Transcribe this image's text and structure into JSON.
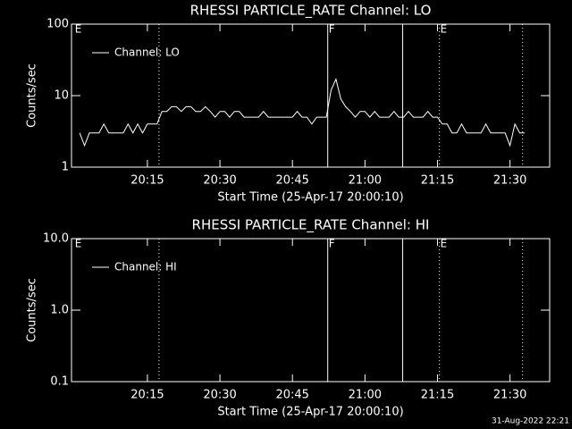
{
  "chart_data": [
    {
      "type": "line",
      "title": "RHESSI PARTICLE_RATE Channel: LO",
      "ylabel": "Counts/sec",
      "xlabel": "Start Time (25-Apr-17 20:00:10)",
      "ylog": true,
      "ylim": [
        1,
        100
      ],
      "yticks": [
        1,
        10,
        100
      ],
      "xlim": [
        -0.7,
        98.2
      ],
      "xticks": [
        {
          "value": 15,
          "label": "20:15"
        },
        {
          "value": 30,
          "label": "20:30"
        },
        {
          "value": 45,
          "label": "20:45"
        },
        {
          "value": 60,
          "label": "21:00"
        },
        {
          "value": 75,
          "label": "21:15"
        },
        {
          "value": 90,
          "label": "21:30"
        }
      ],
      "legend": "top-left",
      "x": [
        1,
        2,
        3,
        4,
        5,
        6,
        7,
        8,
        9,
        10,
        11,
        12,
        13,
        14,
        15,
        16,
        17,
        18,
        19,
        20,
        21,
        22,
        23,
        24,
        25,
        26,
        27,
        28,
        29,
        30,
        31,
        32,
        33,
        34,
        35,
        36,
        37,
        38,
        39,
        40,
        41,
        42,
        43,
        44,
        45,
        46,
        47,
        48,
        49,
        50,
        51,
        52,
        53,
        54,
        55,
        56,
        57,
        58,
        59,
        60,
        61,
        62,
        63,
        64,
        65,
        66,
        67,
        68,
        69,
        70,
        71,
        72,
        73,
        74,
        75,
        76,
        77,
        78,
        79,
        80,
        81,
        82,
        83,
        84,
        85,
        86,
        87,
        88,
        89,
        90,
        91,
        92,
        93
      ],
      "series": [
        {
          "name": "Channel: LO",
          "color": "#ffffff",
          "values": [
            3,
            2,
            3,
            3,
            3,
            4,
            3,
            3,
            3,
            3,
            4,
            3,
            4,
            3,
            4,
            4,
            4,
            6,
            6,
            7,
            7,
            6,
            7,
            7,
            6,
            6,
            7,
            6,
            5,
            6,
            6,
            5,
            6,
            6,
            5,
            5,
            5,
            5,
            6,
            5,
            5,
            5,
            5,
            5,
            5,
            6,
            5,
            5,
            4,
            5,
            5,
            5,
            12,
            17,
            9,
            7,
            6,
            5,
            6,
            6,
            5,
            6,
            5,
            5,
            5,
            6,
            5,
            5,
            6,
            5,
            5,
            5,
            6,
            5,
            5,
            4,
            4,
            3,
            3,
            4,
            3,
            3,
            3,
            3,
            4,
            3,
            3,
            3,
            3,
            2,
            4,
            3,
            3
          ]
        }
      ],
      "vlines": [
        {
          "x": 17.4,
          "style": "dotted"
        },
        {
          "x": 52.3,
          "style": "solid"
        },
        {
          "x": 67.8,
          "style": "solid"
        },
        {
          "x": 75.4,
          "style": "dotted"
        },
        {
          "x": 92.6,
          "style": "dotted"
        }
      ],
      "annotations": [
        {
          "x": -0.2,
          "text": "E"
        },
        {
          "x": 52.3,
          "text": "F"
        },
        {
          "x": 75.4,
          "text": "E"
        }
      ]
    },
    {
      "type": "line",
      "title": "RHESSI PARTICLE_RATE Channel: HI",
      "ylabel": "Counts/sec",
      "xlabel": "Start Time (25-Apr-17 20:00:10)",
      "ylog": true,
      "ylim": [
        0.1,
        10
      ],
      "yticks": [
        0.1,
        {
          "value": 1,
          "label": "1.0"
        },
        {
          "value": 10,
          "label": "10.0"
        }
      ],
      "xlim": [
        -0.7,
        98.2
      ],
      "xticks": [
        {
          "value": 15,
          "label": "20:15"
        },
        {
          "value": 30,
          "label": "20:30"
        },
        {
          "value": 45,
          "label": "20:45"
        },
        {
          "value": 60,
          "label": "21:00"
        },
        {
          "value": 75,
          "label": "21:15"
        },
        {
          "value": 90,
          "label": "21:30"
        }
      ],
      "legend": "top-left",
      "x": [],
      "series": [
        {
          "name": "Channel: HI",
          "color": "#ffffff",
          "values": []
        }
      ],
      "vlines": [
        {
          "x": 17.4,
          "style": "dotted"
        },
        {
          "x": 52.3,
          "style": "solid"
        },
        {
          "x": 67.8,
          "style": "solid"
        },
        {
          "x": 75.4,
          "style": "dotted"
        },
        {
          "x": 92.6,
          "style": "dotted"
        }
      ],
      "annotations": [
        {
          "x": -0.2,
          "text": "E"
        },
        {
          "x": 52.3,
          "text": "F"
        },
        {
          "x": 75.4,
          "text": "E"
        }
      ]
    }
  ],
  "footer": "31-Aug-2022 22:21"
}
